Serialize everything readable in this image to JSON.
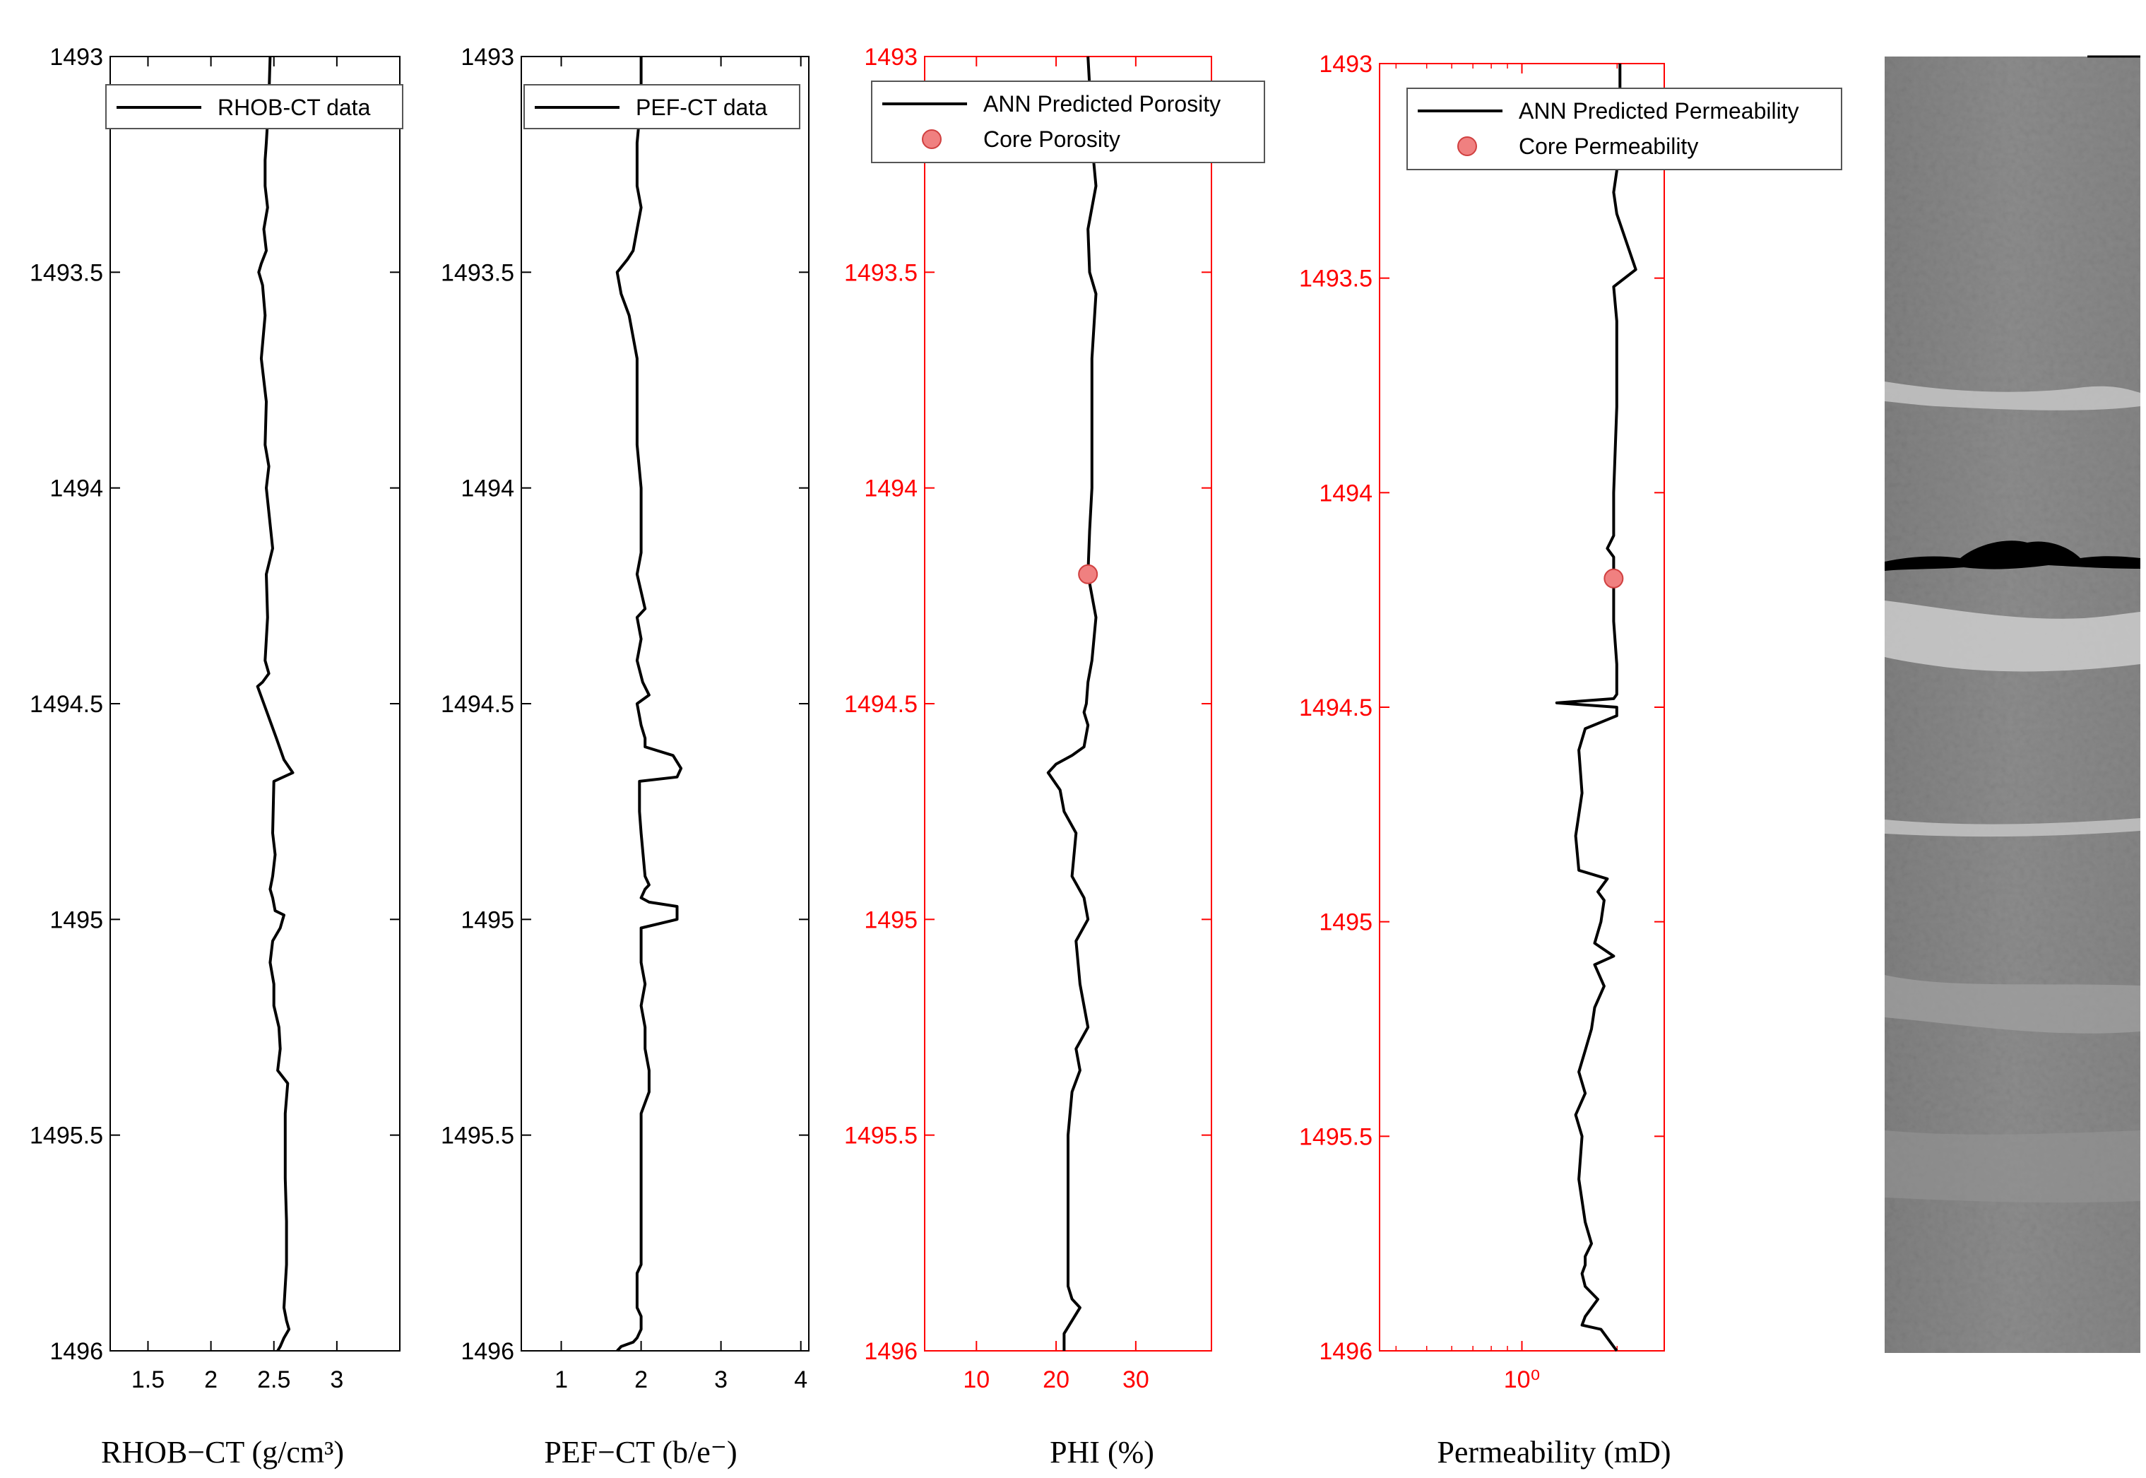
{
  "chart_data": [
    {
      "type": "line",
      "id": "rhob",
      "axis_color": "#000000",
      "xlabel": "RHOB−CT (g/cm³)",
      "xlim": [
        1.2,
        3.5
      ],
      "xticks": [
        1.5,
        2,
        2.5,
        3
      ],
      "xtick_labels": [
        "1.5",
        "2",
        "2.5",
        "3"
      ],
      "ylim": [
        1493,
        1496
      ],
      "yticks": [
        1493,
        1493.5,
        1494,
        1494.5,
        1495,
        1495.5,
        1496
      ],
      "ytick_labels": [
        "1493",
        "1493.5",
        "1494",
        "1494.5",
        "1495",
        "1495.5",
        "1496"
      ],
      "legend": [
        {
          "label": "RHOB-CT data",
          "marker": "line"
        }
      ],
      "series": [
        {
          "name": "RHOB-CT data",
          "color": "#000000",
          "x": [
            2.47,
            2.46,
            2.44,
            2.43,
            2.43,
            2.45,
            2.42,
            2.44,
            2.4,
            2.38,
            2.41,
            2.43,
            2.4,
            2.44,
            2.43,
            2.46,
            2.44,
            2.49,
            2.44,
            2.45,
            2.43,
            2.46,
            2.41,
            2.37,
            2.42,
            2.52,
            2.58,
            2.65,
            2.5,
            2.49,
            2.51,
            2.49,
            2.47,
            2.49,
            2.51,
            2.58,
            2.55,
            2.49,
            2.47,
            2.5,
            2.5,
            2.54,
            2.55,
            2.53,
            2.61,
            2.59,
            2.59,
            2.59,
            2.6,
            2.6,
            2.58,
            2.6,
            2.62,
            2.58,
            2.55,
            2.53
          ],
          "y": [
            1493.0,
            1493.1,
            1493.2,
            1493.24,
            1493.3,
            1493.35,
            1493.4,
            1493.45,
            1493.48,
            1493.5,
            1493.53,
            1493.6,
            1493.7,
            1493.8,
            1493.9,
            1493.95,
            1494.0,
            1494.14,
            1494.2,
            1494.3,
            1494.4,
            1494.43,
            1494.45,
            1494.46,
            1494.5,
            1494.58,
            1494.63,
            1494.66,
            1494.68,
            1494.8,
            1494.85,
            1494.9,
            1494.93,
            1494.95,
            1494.98,
            1494.99,
            1495.02,
            1495.05,
            1495.1,
            1495.15,
            1495.2,
            1495.25,
            1495.3,
            1495.35,
            1495.38,
            1495.45,
            1495.5,
            1495.6,
            1495.7,
            1495.8,
            1495.9,
            1495.93,
            1495.95,
            1495.97,
            1495.99,
            1496.0
          ]
        }
      ]
    },
    {
      "type": "line",
      "id": "pef",
      "axis_color": "#000000",
      "xlabel": "PEF−CT (b/e⁻)",
      "xlim": [
        0.5,
        4.1
      ],
      "xticks": [
        1,
        2,
        3,
        4
      ],
      "xtick_labels": [
        "1",
        "2",
        "3",
        "4"
      ],
      "ylim": [
        1493,
        1496
      ],
      "yticks": [
        1493,
        1493.5,
        1494,
        1494.5,
        1495,
        1495.5,
        1496
      ],
      "ytick_labels": [
        "1493",
        "1493.5",
        "1494",
        "1494.5",
        "1495",
        "1495.5",
        "1496"
      ],
      "legend": [
        {
          "label": "PEF-CT data",
          "marker": "line"
        }
      ],
      "series": [
        {
          "name": "PEF-CT data",
          "color": "#000000",
          "x": [
            2.0,
            2.0,
            1.95,
            1.95,
            2.0,
            1.95,
            1.9,
            1.83,
            1.7,
            1.75,
            1.85,
            1.95,
            1.95,
            1.95,
            2.0,
            2.0,
            2.0,
            1.95,
            2.05,
            1.95,
            2.0,
            1.95,
            2.02,
            2.1,
            1.95,
            2.0,
            2.05,
            2.05,
            2.4,
            2.5,
            2.45,
            1.98,
            1.98,
            2.0,
            2.05,
            2.1,
            2.05,
            2.0,
            2.1,
            2.45,
            2.45,
            2.0,
            2.0,
            2.05,
            2.0,
            2.05,
            2.05,
            2.1,
            2.1,
            2.0,
            2.0,
            2.0,
            2.0,
            2.0,
            1.95,
            1.95,
            1.95,
            1.95,
            2.0,
            2.0,
            1.95,
            1.9,
            1.75,
            1.7
          ],
          "y": [
            1493.0,
            1493.1,
            1493.2,
            1493.3,
            1493.35,
            1493.4,
            1493.45,
            1493.47,
            1493.5,
            1493.55,
            1493.6,
            1493.7,
            1493.8,
            1493.9,
            1494.0,
            1494.1,
            1494.15,
            1494.2,
            1494.28,
            1494.3,
            1494.35,
            1494.4,
            1494.45,
            1494.48,
            1494.5,
            1494.55,
            1494.58,
            1494.6,
            1494.62,
            1494.65,
            1494.67,
            1494.68,
            1494.75,
            1494.8,
            1494.9,
            1494.92,
            1494.93,
            1494.95,
            1494.96,
            1494.97,
            1495.0,
            1495.02,
            1495.1,
            1495.15,
            1495.2,
            1495.25,
            1495.3,
            1495.35,
            1495.4,
            1495.45,
            1495.5,
            1495.6,
            1495.7,
            1495.8,
            1495.82,
            1495.85,
            1495.88,
            1495.9,
            1495.92,
            1495.95,
            1495.97,
            1495.98,
            1495.99,
            1496.0
          ]
        }
      ]
    },
    {
      "type": "line",
      "id": "phi",
      "axis_color": "#ff0000",
      "xlabel": "PHI (%)",
      "xlim": [
        3.5,
        39.5
      ],
      "xticks": [
        10,
        20,
        30
      ],
      "xtick_labels": [
        "10",
        "20",
        "30"
      ],
      "ylim": [
        1493,
        1496
      ],
      "yticks": [
        1493,
        1493.5,
        1494,
        1494.5,
        1495,
        1495.5,
        1496
      ],
      "ytick_labels": [
        "1493",
        "1493.5",
        "1494",
        "1494.5",
        "1495",
        "1495.5",
        "1496"
      ],
      "legend": [
        {
          "label": "ANN Predicted Porosity",
          "marker": "line"
        },
        {
          "label": "Core Porosity",
          "marker": "circle"
        }
      ],
      "series": [
        {
          "name": "ANN Predicted Porosity",
          "color": "#000000",
          "x": [
            24.0,
            24.3,
            24.5,
            25.0,
            24.0,
            24.2,
            25.0,
            24.5,
            24.5,
            24.2,
            24.0,
            25.0,
            24.5,
            24.0,
            23.8,
            23.5,
            24.0,
            23.5,
            22.0,
            20.0,
            19.0,
            20.5,
            21.0,
            22.5,
            22.0,
            23.5,
            24.0,
            22.5,
            23.0,
            24.0,
            22.5,
            23.0,
            22.0,
            21.5,
            21.5,
            21.5,
            21.5,
            21.5,
            22.0,
            23.0,
            22.0,
            21.0,
            21.0
          ],
          "y": [
            1493.0,
            1493.1,
            1493.2,
            1493.3,
            1493.4,
            1493.5,
            1493.55,
            1493.7,
            1494.0,
            1494.1,
            1494.2,
            1494.3,
            1494.4,
            1494.45,
            1494.5,
            1494.52,
            1494.55,
            1494.6,
            1494.62,
            1494.64,
            1494.66,
            1494.7,
            1494.75,
            1494.8,
            1494.9,
            1494.95,
            1495.0,
            1495.05,
            1495.15,
            1495.25,
            1495.3,
            1495.35,
            1495.4,
            1495.5,
            1495.6,
            1495.7,
            1495.8,
            1495.85,
            1495.88,
            1495.9,
            1495.93,
            1495.96,
            1496.0
          ]
        }
      ],
      "points": [
        {
          "name": "Core Porosity",
          "color": "#f08080",
          "edge": "#d04040",
          "x": [
            24.0
          ],
          "y": [
            1494.2
          ]
        }
      ]
    },
    {
      "type": "line",
      "id": "perm",
      "axis_color": "#ff0000",
      "xlabel": "Permeability (mD)",
      "log_x": true,
      "xlim": [
        -0.45,
        0.45
      ],
      "xtick_values_log10": [
        0
      ],
      "xtick_labels": [
        "10⁰"
      ],
      "ylim": [
        1493,
        1496
      ],
      "yticks": [
        1493,
        1493.5,
        1494,
        1494.5,
        1495,
        1495.5,
        1496
      ],
      "ytick_labels": [
        "1493",
        "1493.5",
        "1494",
        "1494.5",
        "1495",
        "1495.5",
        "1496"
      ],
      "legend": [
        {
          "label": "ANN Predicted Permeability",
          "marker": "line"
        },
        {
          "label": "Core Permeability",
          "marker": "circle"
        }
      ],
      "series": [
        {
          "name": "ANN Predicted Permeability",
          "color": "#000000",
          "note_units": "log10 mD",
          "x": [
            0.31,
            0.31,
            0.3,
            0.29,
            0.3,
            0.36,
            0.29,
            0.3,
            0.3,
            0.29,
            0.29,
            0.27,
            0.29,
            0.29,
            0.29,
            0.3,
            0.3,
            0.3,
            0.29,
            0.11,
            0.3,
            0.3,
            0.2,
            0.18,
            0.19,
            0.17,
            0.18,
            0.27,
            0.24,
            0.26,
            0.25,
            0.23,
            0.29,
            0.23,
            0.26,
            0.23,
            0.22,
            0.2,
            0.18,
            0.2,
            0.17,
            0.19,
            0.18,
            0.2,
            0.22,
            0.2,
            0.2,
            0.19,
            0.2,
            0.24,
            0.2,
            0.19,
            0.25,
            0.3
          ],
          "y": [
            1493.0,
            1493.1,
            1493.25,
            1493.3,
            1493.35,
            1493.48,
            1493.52,
            1493.6,
            1493.8,
            1494.0,
            1494.1,
            1494.13,
            1494.15,
            1494.2,
            1494.3,
            1494.4,
            1494.45,
            1494.47,
            1494.48,
            1494.49,
            1494.5,
            1494.52,
            1494.55,
            1494.6,
            1494.7,
            1494.8,
            1494.88,
            1494.9,
            1494.93,
            1494.95,
            1495.0,
            1495.05,
            1495.08,
            1495.1,
            1495.15,
            1495.2,
            1495.25,
            1495.3,
            1495.35,
            1495.4,
            1495.45,
            1495.5,
            1495.6,
            1495.7,
            1495.75,
            1495.78,
            1495.8,
            1495.82,
            1495.85,
            1495.88,
            1495.92,
            1495.94,
            1495.95,
            1496.0
          ]
        }
      ],
      "points": [
        {
          "name": "Core Permeability",
          "color": "#f08080",
          "edge": "#d04040",
          "x": [
            0.29
          ],
          "y": [
            1494.2
          ]
        }
      ]
    }
  ],
  "core_image": {
    "description_colors": {
      "base": "#8a8a8a",
      "light": "#c8c8c8",
      "dark": "#6a6a6a",
      "void": "#000000"
    }
  }
}
